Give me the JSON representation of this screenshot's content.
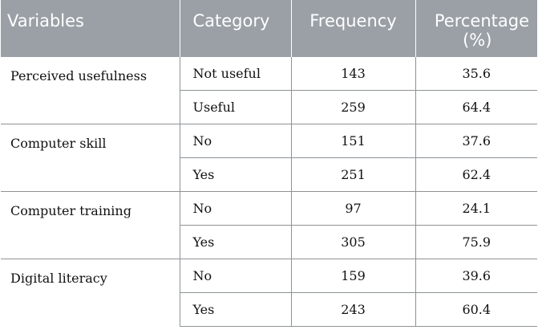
{
  "headers": {
    "variables": "Variables",
    "category": "Category",
    "frequency": "Frequency",
    "percentage_line1": "Percentage",
    "percentage_line2": "(%)"
  },
  "rows": [
    {
      "variable": "Perceived usefulness",
      "items": [
        {
          "category": "Not useful",
          "frequency": "143",
          "percentage": "35.6"
        },
        {
          "category": "Useful",
          "frequency": "259",
          "percentage": "64.4"
        }
      ]
    },
    {
      "variable": "Computer skill",
      "items": [
        {
          "category": "No",
          "frequency": "151",
          "percentage": "37.6"
        },
        {
          "category": "Yes",
          "frequency": "251",
          "percentage": "62.4"
        }
      ]
    },
    {
      "variable": "Computer training",
      "items": [
        {
          "category": "No",
          "frequency": "97",
          "percentage": "24.1"
        },
        {
          "category": "Yes",
          "frequency": "305",
          "percentage": "75.9"
        }
      ]
    },
    {
      "variable": "Digital literacy",
      "items": [
        {
          "category": "No",
          "frequency": "159",
          "percentage": "39.6"
        },
        {
          "category": "Yes",
          "frequency": "243",
          "percentage": "60.4"
        }
      ]
    }
  ]
}
